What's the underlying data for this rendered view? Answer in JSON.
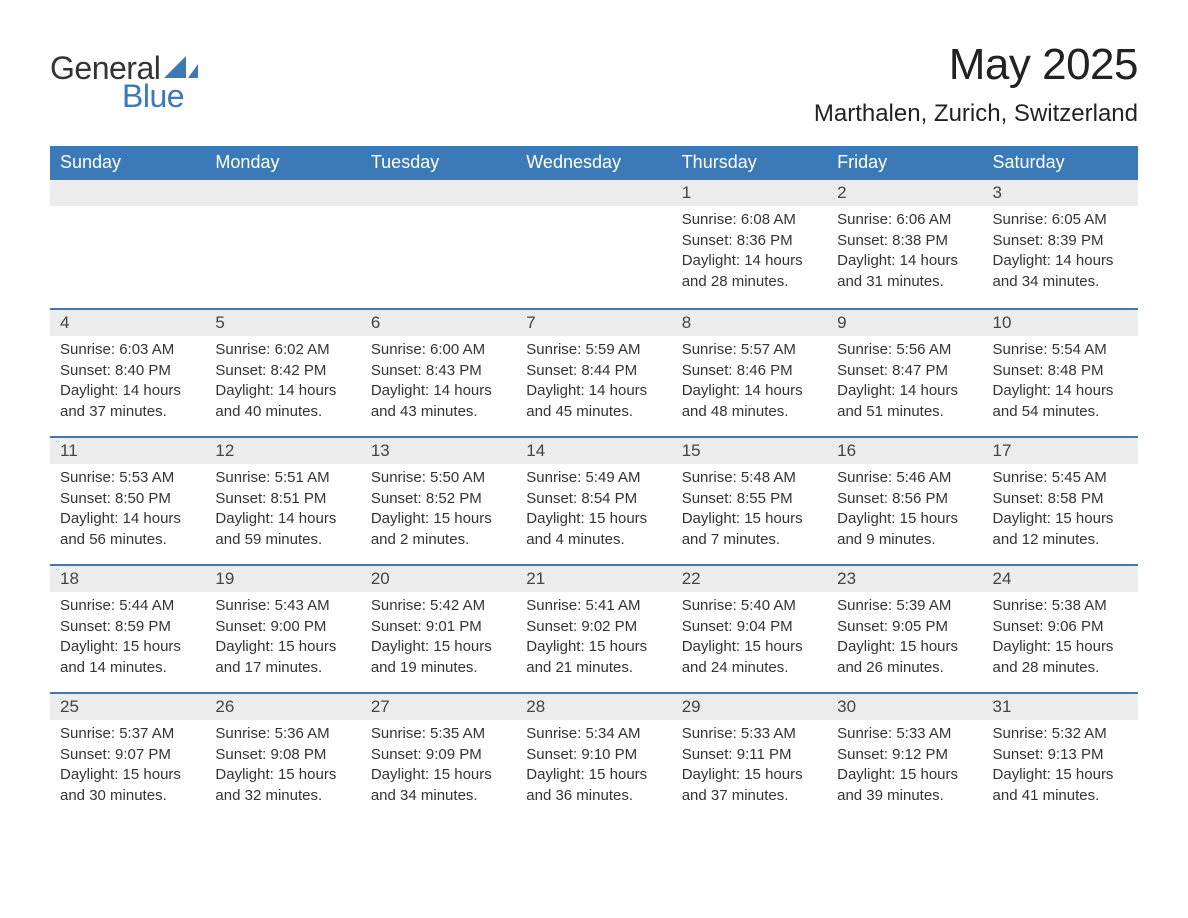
{
  "brand": {
    "word1": "General",
    "word2": "Blue",
    "text_color": "#333333",
    "accent_color": "#3b79b7"
  },
  "title": {
    "month_year": "May 2025",
    "location": "Marthalen, Zurich, Switzerland",
    "month_fontsize": 44,
    "location_fontsize": 24,
    "text_color": "#222222"
  },
  "calendar": {
    "type": "table",
    "header_bg": "#3b79b7",
    "header_text_color": "#ffffff",
    "daynum_bg": "#ececec",
    "daynum_border_top": "#3b79b7",
    "body_text_color": "#333333",
    "background_color": "#ffffff",
    "columns": [
      "Sunday",
      "Monday",
      "Tuesday",
      "Wednesday",
      "Thursday",
      "Friday",
      "Saturday"
    ],
    "header_fontsize": 18,
    "daynum_fontsize": 17,
    "body_fontsize": 15,
    "leading_blanks": 4,
    "days": [
      {
        "n": "1",
        "sunrise": "6:08 AM",
        "sunset": "8:36 PM",
        "daylight": "14 hours and 28 minutes."
      },
      {
        "n": "2",
        "sunrise": "6:06 AM",
        "sunset": "8:38 PM",
        "daylight": "14 hours and 31 minutes."
      },
      {
        "n": "3",
        "sunrise": "6:05 AM",
        "sunset": "8:39 PM",
        "daylight": "14 hours and 34 minutes."
      },
      {
        "n": "4",
        "sunrise": "6:03 AM",
        "sunset": "8:40 PM",
        "daylight": "14 hours and 37 minutes."
      },
      {
        "n": "5",
        "sunrise": "6:02 AM",
        "sunset": "8:42 PM",
        "daylight": "14 hours and 40 minutes."
      },
      {
        "n": "6",
        "sunrise": "6:00 AM",
        "sunset": "8:43 PM",
        "daylight": "14 hours and 43 minutes."
      },
      {
        "n": "7",
        "sunrise": "5:59 AM",
        "sunset": "8:44 PM",
        "daylight": "14 hours and 45 minutes."
      },
      {
        "n": "8",
        "sunrise": "5:57 AM",
        "sunset": "8:46 PM",
        "daylight": "14 hours and 48 minutes."
      },
      {
        "n": "9",
        "sunrise": "5:56 AM",
        "sunset": "8:47 PM",
        "daylight": "14 hours and 51 minutes."
      },
      {
        "n": "10",
        "sunrise": "5:54 AM",
        "sunset": "8:48 PM",
        "daylight": "14 hours and 54 minutes."
      },
      {
        "n": "11",
        "sunrise": "5:53 AM",
        "sunset": "8:50 PM",
        "daylight": "14 hours and 56 minutes."
      },
      {
        "n": "12",
        "sunrise": "5:51 AM",
        "sunset": "8:51 PM",
        "daylight": "14 hours and 59 minutes."
      },
      {
        "n": "13",
        "sunrise": "5:50 AM",
        "sunset": "8:52 PM",
        "daylight": "15 hours and 2 minutes."
      },
      {
        "n": "14",
        "sunrise": "5:49 AM",
        "sunset": "8:54 PM",
        "daylight": "15 hours and 4 minutes."
      },
      {
        "n": "15",
        "sunrise": "5:48 AM",
        "sunset": "8:55 PM",
        "daylight": "15 hours and 7 minutes."
      },
      {
        "n": "16",
        "sunrise": "5:46 AM",
        "sunset": "8:56 PM",
        "daylight": "15 hours and 9 minutes."
      },
      {
        "n": "17",
        "sunrise": "5:45 AM",
        "sunset": "8:58 PM",
        "daylight": "15 hours and 12 minutes."
      },
      {
        "n": "18",
        "sunrise": "5:44 AM",
        "sunset": "8:59 PM",
        "daylight": "15 hours and 14 minutes."
      },
      {
        "n": "19",
        "sunrise": "5:43 AM",
        "sunset": "9:00 PM",
        "daylight": "15 hours and 17 minutes."
      },
      {
        "n": "20",
        "sunrise": "5:42 AM",
        "sunset": "9:01 PM",
        "daylight": "15 hours and 19 minutes."
      },
      {
        "n": "21",
        "sunrise": "5:41 AM",
        "sunset": "9:02 PM",
        "daylight": "15 hours and 21 minutes."
      },
      {
        "n": "22",
        "sunrise": "5:40 AM",
        "sunset": "9:04 PM",
        "daylight": "15 hours and 24 minutes."
      },
      {
        "n": "23",
        "sunrise": "5:39 AM",
        "sunset": "9:05 PM",
        "daylight": "15 hours and 26 minutes."
      },
      {
        "n": "24",
        "sunrise": "5:38 AM",
        "sunset": "9:06 PM",
        "daylight": "15 hours and 28 minutes."
      },
      {
        "n": "25",
        "sunrise": "5:37 AM",
        "sunset": "9:07 PM",
        "daylight": "15 hours and 30 minutes."
      },
      {
        "n": "26",
        "sunrise": "5:36 AM",
        "sunset": "9:08 PM",
        "daylight": "15 hours and 32 minutes."
      },
      {
        "n": "27",
        "sunrise": "5:35 AM",
        "sunset": "9:09 PM",
        "daylight": "15 hours and 34 minutes."
      },
      {
        "n": "28",
        "sunrise": "5:34 AM",
        "sunset": "9:10 PM",
        "daylight": "15 hours and 36 minutes."
      },
      {
        "n": "29",
        "sunrise": "5:33 AM",
        "sunset": "9:11 PM",
        "daylight": "15 hours and 37 minutes."
      },
      {
        "n": "30",
        "sunrise": "5:33 AM",
        "sunset": "9:12 PM",
        "daylight": "15 hours and 39 minutes."
      },
      {
        "n": "31",
        "sunrise": "5:32 AM",
        "sunset": "9:13 PM",
        "daylight": "15 hours and 41 minutes."
      }
    ],
    "labels": {
      "sunrise_prefix": "Sunrise: ",
      "sunset_prefix": "Sunset: ",
      "daylight_prefix": "Daylight: "
    }
  }
}
